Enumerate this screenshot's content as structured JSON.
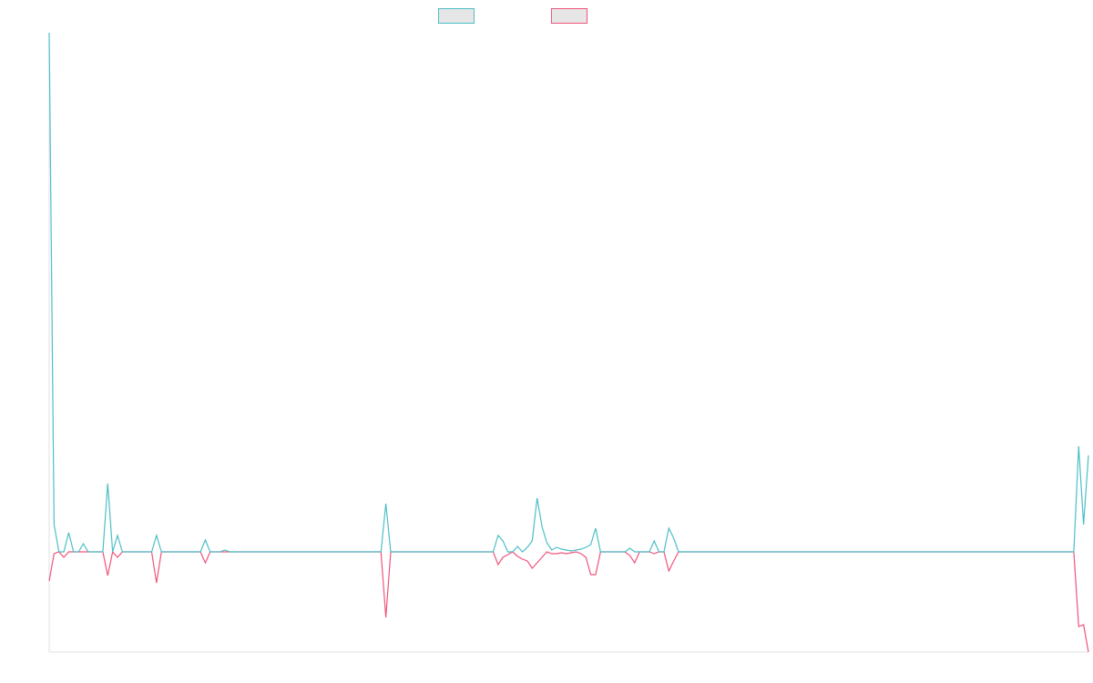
{
  "chart_data": {
    "type": "line",
    "ylim": [
      -110,
      570
    ],
    "series": [
      {
        "color": "#f0547c",
        "values": [
          -32,
          -2,
          0,
          -6,
          0,
          0,
          0,
          0,
          0,
          0,
          0,
          0,
          -26,
          0,
          -6,
          0,
          0,
          0,
          0,
          0,
          0,
          0,
          -34,
          0,
          0,
          0,
          0,
          0,
          0,
          0,
          0,
          0,
          -12,
          0,
          0,
          0,
          0,
          0,
          0,
          0,
          0,
          0,
          0,
          0,
          0,
          0,
          0,
          0,
          0,
          0,
          0,
          0,
          0,
          0,
          0,
          0,
          0,
          0,
          0,
          0,
          0,
          0,
          0,
          0,
          0,
          0,
          0,
          0,
          0,
          -72,
          0,
          0,
          0,
          0,
          0,
          0,
          0,
          0,
          0,
          0,
          0,
          0,
          0,
          0,
          0,
          0,
          0,
          0,
          0,
          0,
          0,
          0,
          -14,
          -6,
          -3,
          0,
          -5,
          -8,
          -10,
          -18,
          -12,
          -6,
          0,
          -2,
          -2,
          -1,
          -2,
          -1,
          0,
          -2,
          -6,
          -25,
          -25,
          0,
          0,
          0,
          0,
          0,
          0,
          -4,
          -12,
          0,
          0,
          0,
          -2,
          0,
          0,
          -21,
          -10,
          0,
          0,
          0,
          0,
          0,
          0,
          0,
          0,
          0,
          0,
          0,
          0,
          0,
          0,
          0,
          0,
          0,
          0,
          0,
          0,
          0,
          0,
          0,
          0,
          0,
          0,
          0,
          0,
          0,
          0,
          0,
          0,
          0,
          0,
          0,
          0,
          0,
          0,
          0,
          0,
          0,
          0,
          0,
          0,
          0,
          0,
          0,
          0,
          0,
          0,
          0,
          0,
          0,
          0,
          0,
          0,
          0,
          0,
          0,
          0,
          0,
          0,
          0,
          0,
          0,
          0,
          0,
          0,
          0,
          0,
          0,
          0,
          0,
          0,
          0,
          0,
          0,
          0,
          0,
          0,
          0,
          0,
          -82,
          -80,
          -110
        ]
      },
      {
        "color": "#4bbfc6",
        "values": [
          570,
          30,
          0,
          0,
          21,
          0,
          0,
          9,
          0,
          0,
          0,
          0,
          75,
          0,
          18,
          0,
          0,
          0,
          0,
          0,
          0,
          0,
          18,
          0,
          0,
          0,
          0,
          0,
          0,
          0,
          0,
          0,
          13,
          0,
          0,
          0,
          2,
          0,
          0,
          0,
          0,
          0,
          0,
          0,
          0,
          0,
          0,
          0,
          0,
          0,
          0,
          0,
          0,
          0,
          0,
          0,
          0,
          0,
          0,
          0,
          0,
          0,
          0,
          0,
          0,
          0,
          0,
          0,
          0,
          53,
          0,
          0,
          0,
          0,
          0,
          0,
          0,
          0,
          0,
          0,
          0,
          0,
          0,
          0,
          0,
          0,
          0,
          0,
          0,
          0,
          0,
          0,
          18,
          12,
          0,
          0,
          6,
          0,
          5,
          12,
          59,
          28,
          10,
          2,
          5,
          3,
          2,
          1,
          2,
          3,
          5,
          8,
          26,
          0,
          0,
          0,
          0,
          0,
          0,
          4,
          0,
          0,
          0,
          0,
          12,
          0,
          0,
          26,
          15,
          0,
          0,
          0,
          0,
          0,
          0,
          0,
          0,
          0,
          0,
          0,
          0,
          0,
          0,
          0,
          0,
          0,
          0,
          0,
          0,
          0,
          0,
          0,
          0,
          0,
          0,
          0,
          0,
          0,
          0,
          0,
          0,
          0,
          0,
          0,
          0,
          0,
          0,
          0,
          0,
          0,
          0,
          0,
          0,
          0,
          0,
          0,
          0,
          0,
          0,
          0,
          0,
          0,
          0,
          0,
          0,
          0,
          0,
          0,
          0,
          0,
          0,
          0,
          0,
          0,
          0,
          0,
          0,
          0,
          0,
          0,
          0,
          0,
          0,
          0,
          0,
          0,
          0,
          0,
          0,
          0,
          0,
          116,
          30,
          106
        ]
      }
    ]
  }
}
